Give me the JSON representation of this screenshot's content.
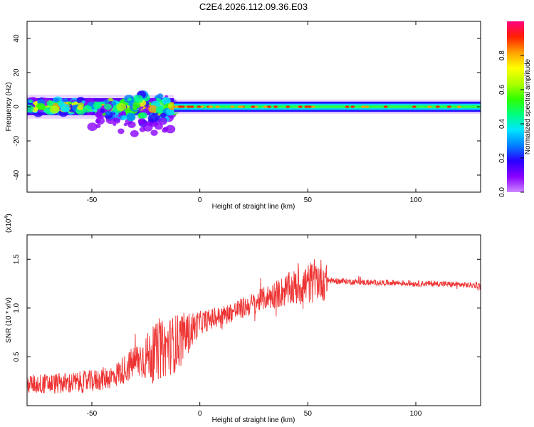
{
  "figure": {
    "title": "C2E4.2026.112.09.36.E03"
  },
  "chart_data": [
    {
      "type": "heatmap",
      "xlabel": "Height of straight line (km)",
      "ylabel": "Frequency (Hz)",
      "xlim": [
        -80,
        130
      ],
      "ylim": [
        -50,
        50
      ],
      "x_ticks": [
        -50,
        0,
        50,
        100
      ],
      "y_ticks": [
        -40,
        -20,
        0,
        20,
        40
      ],
      "x_tick_labels": [
        "-50",
        "0",
        "50",
        "100"
      ],
      "y_tick_labels": [
        "-40",
        "-20",
        "0",
        "20",
        "40"
      ],
      "colorbar": {
        "label": "Normalized spectral amplitude",
        "range": [
          0,
          1
        ],
        "ticks": [
          0.0,
          0.2,
          0.4,
          0.6,
          0.8
        ],
        "tick_labels": [
          "0.0",
          "0.2",
          "0.4",
          "0.6",
          "0.8"
        ],
        "colormap": [
          "#cc88ff",
          "#8a00ff",
          "#2a00ff",
          "#0080ff",
          "#00e5ff",
          "#00ff80",
          "#30ff00",
          "#b0ff00",
          "#ffff00",
          "#ffa000",
          "#ff2000",
          "#ff0080"
        ]
      },
      "bands": [
        {
          "x": [
            -80,
            -12
          ],
          "center": 0,
          "halfwidth": 5,
          "scatter": true
        },
        {
          "x": [
            -12,
            56
          ],
          "center": 0,
          "halfwidth": 3,
          "scatter": false
        },
        {
          "x": [
            56,
            130
          ],
          "center": 0,
          "halfwidth": 3,
          "scatter": false
        }
      ]
    },
    {
      "type": "line",
      "xlabel": "Height of straight line (km)",
      "ylabel": "SNR (10 * v/v)",
      "scale_label": "(x10",
      "scale_exponent": "4",
      "scale_close": ")",
      "xlim": [
        -80,
        130
      ],
      "ylim": [
        0,
        1.75
      ],
      "x_ticks": [
        -50,
        0,
        50,
        100
      ],
      "y_ticks": [
        0.5,
        1.0,
        1.5
      ],
      "x_tick_labels": [
        "-50",
        "0",
        "50",
        "100"
      ],
      "y_tick_labels": [
        "0.5",
        "1.0",
        "1.5"
      ],
      "color": "#ee3333",
      "trend": {
        "x": [
          -80,
          -60,
          -50,
          -40,
          -30,
          -20,
          -10,
          -5,
          0,
          10,
          20,
          30,
          40,
          50,
          55,
          60,
          70,
          80,
          90,
          100,
          110,
          120,
          130
        ],
        "y": [
          0.22,
          0.23,
          0.25,
          0.3,
          0.45,
          0.55,
          0.65,
          0.75,
          0.85,
          0.92,
          1.0,
          1.1,
          1.18,
          1.25,
          1.3,
          1.28,
          1.27,
          1.26,
          1.26,
          1.25,
          1.25,
          1.24,
          1.23
        ]
      },
      "noise": {
        "x": [
          -80,
          -40,
          -30,
          -20,
          -10,
          0,
          10,
          30,
          50,
          58,
          60,
          130
        ],
        "amplitude": [
          0.1,
          0.12,
          0.18,
          0.3,
          0.3,
          0.12,
          0.1,
          0.12,
          0.22,
          0.22,
          0.03,
          0.03
        ]
      }
    }
  ]
}
